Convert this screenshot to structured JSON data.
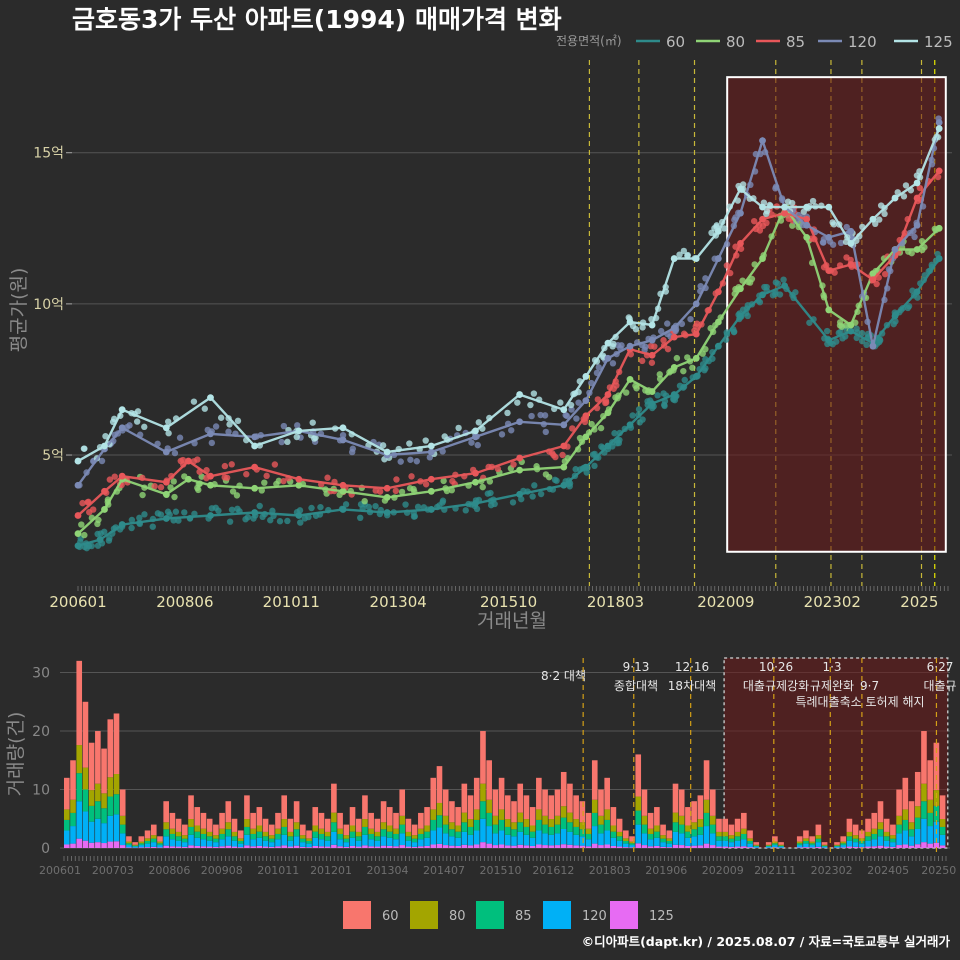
{
  "chart_data": [
    {
      "type": "line",
      "title": "금호동3가 두산 아파트(1994) 매매가격 변화",
      "xlabel": "거래년월",
      "ylabel": "평균가(원)",
      "x_ticks": [
        "200601",
        "200806",
        "201011",
        "201304",
        "201510",
        "201803",
        "202009",
        "202302",
        "2025"
      ],
      "y_ticks": [
        {
          "value": 5,
          "label": "5억"
        },
        {
          "value": 10,
          "label": "10억"
        },
        {
          "value": 15,
          "label": "15억"
        }
      ],
      "ylim": [
        0.8,
        18.2
      ],
      "xlim": [
        2006.0,
        2025.7
      ],
      "legend": {
        "title": "전용면적(㎡)",
        "position": "top-right"
      },
      "grid": true,
      "highlight_box": {
        "x_start": 2020.7,
        "x_end": 2025.65,
        "y_start": 1.8,
        "y_end": 17.5
      },
      "policy_lines": [
        2017.58,
        2018.7,
        2019.96,
        2021.8,
        2023.05,
        2023.75,
        2025.1,
        2025.4
      ],
      "series": [
        {
          "name": "60",
          "color": "#2e8b8b",
          "points": [
            [
              2006.0,
              2.0
            ],
            [
              2006.5,
              2.2
            ],
            [
              2007.0,
              2.7
            ],
            [
              2008.0,
              2.9
            ],
            [
              2009.0,
              3.0
            ],
            [
              2010.0,
              3.1
            ],
            [
              2011.0,
              3.0
            ],
            [
              2012.0,
              3.2
            ],
            [
              2013.0,
              3.1
            ],
            [
              2014.0,
              3.2
            ],
            [
              2015.0,
              3.4
            ],
            [
              2016.0,
              3.7
            ],
            [
              2017.0,
              4.0
            ],
            [
              2017.5,
              4.6
            ],
            [
              2018.0,
              5.3
            ],
            [
              2018.5,
              6.0
            ],
            [
              2019.0,
              6.7
            ],
            [
              2019.5,
              7.0
            ],
            [
              2020.0,
              7.6
            ],
            [
              2020.5,
              8.6
            ],
            [
              2021.0,
              9.6
            ],
            [
              2021.5,
              10.3
            ],
            [
              2022.0,
              10.6
            ],
            [
              2023.0,
              8.8
            ],
            [
              2023.5,
              9.1
            ],
            [
              2024.0,
              8.7
            ],
            [
              2024.5,
              9.6
            ],
            [
              2025.0,
              10.4
            ],
            [
              2025.5,
              11.5
            ]
          ]
        },
        {
          "name": "80",
          "color": "#8fd476",
          "points": [
            [
              2006.0,
              2.4
            ],
            [
              2006.6,
              3.2
            ],
            [
              2007.0,
              4.2
            ],
            [
              2008.0,
              3.7
            ],
            [
              2008.5,
              4.2
            ],
            [
              2009.0,
              4.0
            ],
            [
              2010.0,
              3.9
            ],
            [
              2011.0,
              4.0
            ],
            [
              2012.0,
              3.8
            ],
            [
              2013.0,
              3.6
            ],
            [
              2014.0,
              3.8
            ],
            [
              2015.0,
              4.1
            ],
            [
              2016.0,
              4.5
            ],
            [
              2017.0,
              4.6
            ],
            [
              2017.5,
              5.6
            ],
            [
              2018.0,
              6.4
            ],
            [
              2018.5,
              7.5
            ],
            [
              2019.0,
              7.1
            ],
            [
              2019.5,
              7.9
            ],
            [
              2020.0,
              8.2
            ],
            [
              2020.5,
              9.4
            ],
            [
              2021.0,
              10.5
            ],
            [
              2021.5,
              11.5
            ],
            [
              2022.0,
              13.2
            ],
            [
              2022.5,
              12.2
            ],
            [
              2023.0,
              9.8
            ],
            [
              2023.5,
              9.3
            ],
            [
              2024.0,
              11.0
            ],
            [
              2024.5,
              11.8
            ],
            [
              2025.0,
              11.8
            ],
            [
              2025.5,
              12.5
            ]
          ]
        },
        {
          "name": "85",
          "color": "#e8575a",
          "points": [
            [
              2006.0,
              3.0
            ],
            [
              2006.6,
              3.8
            ],
            [
              2007.0,
              4.3
            ],
            [
              2008.0,
              4.1
            ],
            [
              2008.5,
              4.8
            ],
            [
              2009.0,
              4.3
            ],
            [
              2010.0,
              4.6
            ],
            [
              2011.0,
              4.2
            ],
            [
              2012.0,
              4.0
            ],
            [
              2013.0,
              3.9
            ],
            [
              2014.0,
              4.2
            ],
            [
              2015.0,
              4.4
            ],
            [
              2016.0,
              4.9
            ],
            [
              2017.0,
              5.3
            ],
            [
              2017.5,
              6.3
            ],
            [
              2018.0,
              7.0
            ],
            [
              2018.5,
              8.5
            ],
            [
              2019.0,
              8.3
            ],
            [
              2019.5,
              8.9
            ],
            [
              2020.0,
              9.0
            ],
            [
              2020.5,
              10.4
            ],
            [
              2021.0,
              12.0
            ],
            [
              2021.5,
              12.8
            ],
            [
              2022.0,
              13.0
            ],
            [
              2022.5,
              12.8
            ],
            [
              2023.0,
              11.1
            ],
            [
              2023.5,
              11.3
            ],
            [
              2024.0,
              10.8
            ],
            [
              2024.5,
              11.6
            ],
            [
              2025.0,
              13.5
            ],
            [
              2025.5,
              14.4
            ]
          ]
        },
        {
          "name": "120",
          "color": "#7b8ab5",
          "points": [
            [
              2006.0,
              4.0
            ],
            [
              2006.6,
              5.2
            ],
            [
              2007.0,
              5.9
            ],
            [
              2008.0,
              5.1
            ],
            [
              2009.0,
              5.7
            ],
            [
              2010.0,
              5.6
            ],
            [
              2011.0,
              5.8
            ],
            [
              2012.0,
              5.5
            ],
            [
              2013.0,
              5.0
            ],
            [
              2014.0,
              5.1
            ],
            [
              2015.0,
              5.6
            ],
            [
              2016.0,
              6.1
            ],
            [
              2017.0,
              6.0
            ],
            [
              2017.5,
              6.8
            ],
            [
              2018.0,
              8.2
            ],
            [
              2018.5,
              8.6
            ],
            [
              2019.0,
              8.8
            ],
            [
              2019.5,
              9.2
            ],
            [
              2020.0,
              10.0
            ],
            [
              2020.5,
              11.5
            ],
            [
              2021.0,
              13.0
            ],
            [
              2021.5,
              15.4
            ],
            [
              2022.0,
              13.2
            ],
            [
              2022.5,
              12.6
            ],
            [
              2023.0,
              12.2
            ],
            [
              2023.5,
              12.4
            ],
            [
              2024.0,
              8.6
            ],
            [
              2024.5,
              11.8
            ],
            [
              2025.0,
              12.6
            ],
            [
              2025.5,
              16.0
            ]
          ]
        },
        {
          "name": "125",
          "color": "#b3e4e6",
          "points": [
            [
              2006.0,
              4.8
            ],
            [
              2006.6,
              5.3
            ],
            [
              2007.0,
              6.5
            ],
            [
              2008.0,
              5.9
            ],
            [
              2009.0,
              6.9
            ],
            [
              2010.0,
              5.3
            ],
            [
              2011.0,
              5.8
            ],
            [
              2012.0,
              5.9
            ],
            [
              2013.0,
              5.1
            ],
            [
              2014.0,
              5.3
            ],
            [
              2015.0,
              5.8
            ],
            [
              2016.0,
              7.0
            ],
            [
              2017.0,
              6.5
            ],
            [
              2017.5,
              7.6
            ],
            [
              2018.0,
              8.7
            ],
            [
              2018.5,
              9.4
            ],
            [
              2019.0,
              9.3
            ],
            [
              2019.5,
              11.5
            ],
            [
              2020.0,
              11.5
            ],
            [
              2020.5,
              12.4
            ],
            [
              2021.0,
              13.8
            ],
            [
              2021.5,
              13.2
            ],
            [
              2022.0,
              13.2
            ],
            [
              2022.5,
              13.2
            ],
            [
              2023.0,
              13.2
            ],
            [
              2023.5,
              12.0
            ],
            [
              2024.0,
              12.8
            ],
            [
              2024.5,
              13.5
            ],
            [
              2025.0,
              14.0
            ],
            [
              2025.5,
              15.8
            ]
          ]
        }
      ]
    },
    {
      "type": "bar",
      "stacked": true,
      "xlabel": "",
      "ylabel": "거래량(건)",
      "x_ticks": [
        "200601",
        "200703",
        "200806",
        "200908",
        "201011",
        "201201",
        "201304",
        "201407",
        "201510",
        "201612",
        "201803",
        "201906",
        "202009",
        "202111",
        "202302",
        "202405",
        "20250"
      ],
      "y_ticks": [
        0,
        10,
        20,
        30
      ],
      "ylim": [
        0,
        33
      ],
      "legend": {
        "position": "bottom"
      },
      "series_names": [
        "60",
        "80",
        "85",
        "120",
        "125"
      ],
      "series_colors": [
        "#f8766d",
        "#a3a500",
        "#00bf7d",
        "#00b0f6",
        "#e76bf3"
      ],
      "approx_monthly_totals": [
        12,
        15,
        32,
        25,
        18,
        20,
        17,
        22,
        23,
        10,
        2,
        1,
        2,
        3,
        4,
        2,
        8,
        6,
        5,
        4,
        9,
        7,
        6,
        5,
        4,
        6,
        8,
        5,
        3,
        9,
        6,
        7,
        5,
        4,
        6,
        9,
        5,
        8,
        4,
        3,
        7,
        6,
        5,
        11,
        6,
        4,
        7,
        5,
        9,
        6,
        5,
        8,
        7,
        6,
        10,
        5,
        4,
        6,
        7,
        12,
        14,
        10,
        8,
        7,
        11,
        9,
        12,
        20,
        15,
        10,
        12,
        9,
        8,
        11,
        9,
        7,
        12,
        10,
        9,
        10,
        13,
        11,
        9,
        8,
        6,
        15,
        10,
        12,
        7,
        5,
        3,
        2,
        16,
        10,
        6,
        7,
        4,
        3,
        11,
        10,
        7,
        8,
        9,
        15,
        10,
        5,
        5,
        4,
        5,
        6,
        3,
        1,
        0,
        1,
        2,
        1,
        0,
        0,
        2,
        3,
        2,
        4,
        1,
        0,
        1,
        2,
        5,
        4,
        3,
        5,
        6,
        8,
        5,
        4,
        10,
        12,
        8,
        13,
        20,
        15,
        18,
        9
      ],
      "highlight_box": {
        "x_start": 2020.7,
        "x_end": 2025.65
      },
      "events": [
        {
          "date_label": "8·2 대책",
          "desc": ""
        },
        {
          "date_label": "9·13",
          "desc": "종합대책"
        },
        {
          "date_label": "12·16",
          "desc": "18차대책"
        },
        {
          "date_label": "10·26",
          "desc": "대출규제강화"
        },
        {
          "date_label": "1·3",
          "desc": "규제완화"
        },
        {
          "date_label": "9·7",
          "desc": "특례대출축소 토허제 해지"
        },
        {
          "date_label": "6·27",
          "desc": "대출규"
        }
      ],
      "event_x": [
        2017.58,
        2018.7,
        2019.96,
        2021.8,
        2023.05,
        2023.75,
        2025.4
      ]
    }
  ],
  "legend_bottom": [
    "60",
    "80",
    "85",
    "120",
    "125"
  ],
  "credit": "©디아파트(dapt.kr) / 2025.08.07 / 자료=국토교통부 실거래가"
}
